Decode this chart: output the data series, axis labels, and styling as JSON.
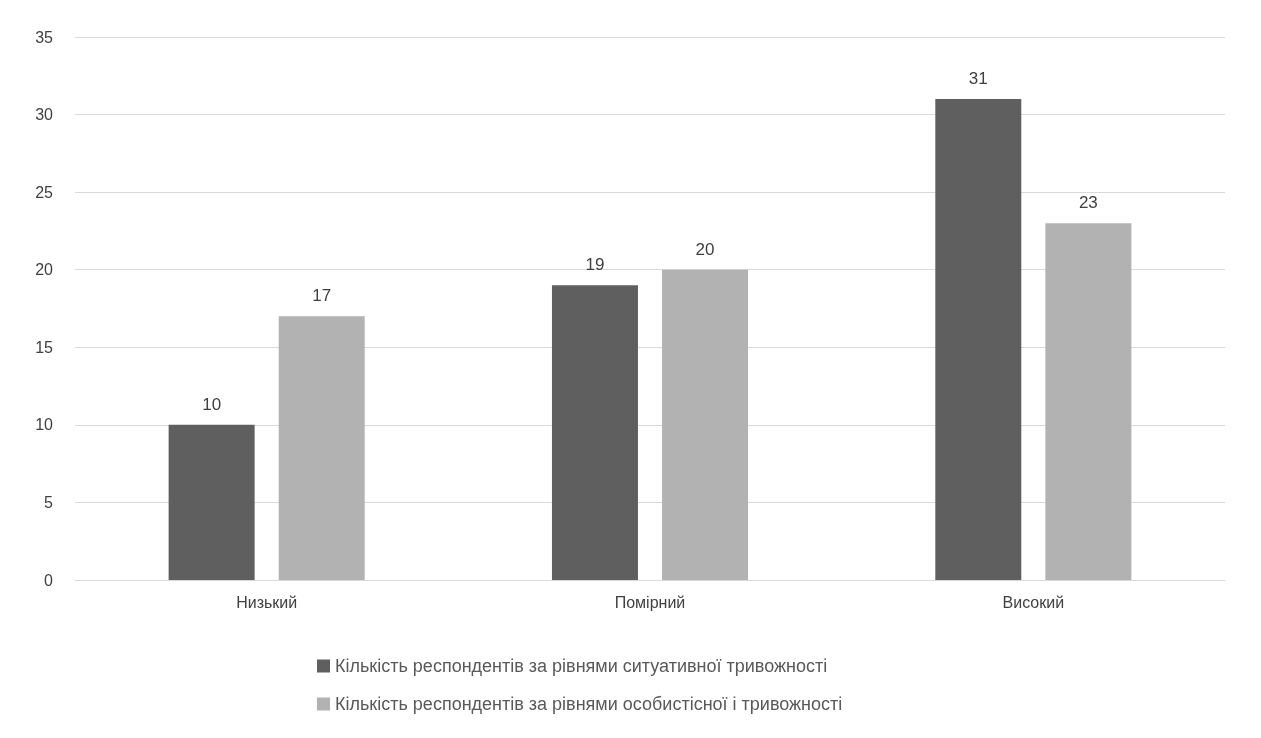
{
  "chart_data": {
    "type": "bar",
    "categories": [
      "Низький",
      "Помірний",
      "Високий"
    ],
    "series": [
      {
        "name": "Кількість респондентів за рівнями ситуативної тривожності",
        "color": "#5f5f5f",
        "values": [
          10,
          19,
          31
        ]
      },
      {
        "name": "Кількість респондентів за рівнями особистісної і тривожності",
        "color": "#b2b2b2",
        "values": [
          17,
          20,
          23
        ]
      }
    ],
    "ylim": [
      0,
      35
    ],
    "yticks": [
      0,
      5,
      10,
      15,
      20,
      25,
      30,
      35
    ],
    "grid": "y",
    "legend": "bottom",
    "data_labels": true
  }
}
